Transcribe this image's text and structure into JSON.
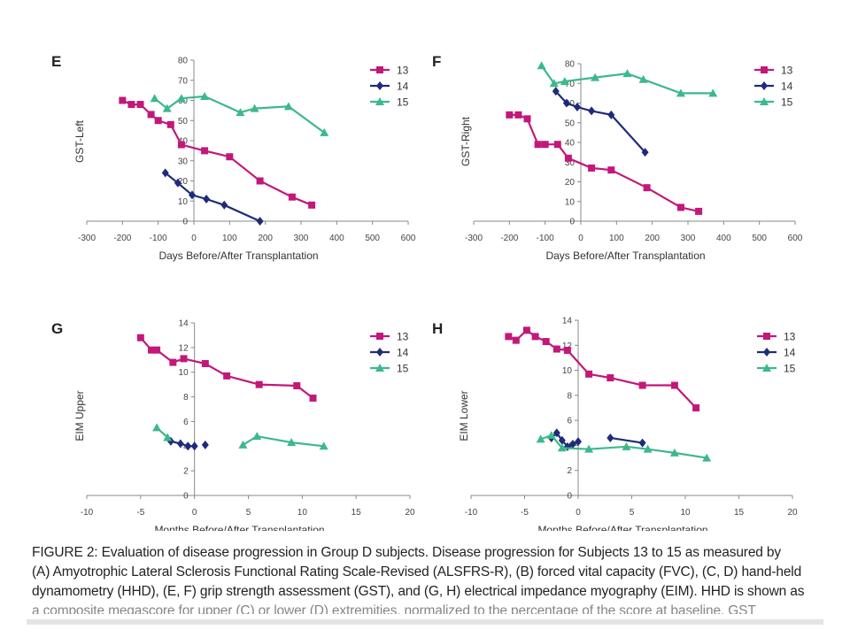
{
  "figure": {
    "caption_lines": [
      "FIGURE 2: Evaluation of disease progression in Group D subjects. Disease progression for Subjects 13 to 15 as measured by",
      "(A) Amyotrophic Lateral Sclerosis Functional Rating Scale-Revised (ALSFRS-R), (B) forced vital capacity (FVC), (C, D) hand-held",
      "dynamometry (HHD), (E, F) grip strength assessment (GST), and (G, H) electrical impedance myography (EIM). HHD is shown as"
    ],
    "caption_cutoff_text": "a composite megascore for upper (C) or lower (D) extremities, normalized to the percentage of the score at baseline. GST"
  },
  "chart_data": [
    {
      "panel": "E",
      "type": "line",
      "ylabel": "GST-Left",
      "xlabel": "Days Before/After Transplantation",
      "xlim": [
        -300,
        600
      ],
      "ylim": [
        0,
        80
      ],
      "xticks": [
        -300,
        -200,
        -100,
        0,
        100,
        200,
        300,
        400,
        500,
        600
      ],
      "yticks": [
        0,
        10,
        20,
        30,
        40,
        50,
        60,
        70,
        80
      ],
      "legend_position": "top-right",
      "series": [
        {
          "name": "13",
          "color": "#c2187a",
          "marker": "square",
          "x": [
            -200,
            -175,
            -150,
            -120,
            -100,
            -65,
            -35,
            30,
            100,
            185,
            275,
            330
          ],
          "y": [
            60,
            58,
            58,
            53,
            50,
            48,
            38,
            35,
            32,
            20,
            12,
            8
          ]
        },
        {
          "name": "14",
          "color": "#1f2b7a",
          "marker": "diamond",
          "x": [
            -80,
            -45,
            -5,
            35,
            85,
            185
          ],
          "y": [
            24,
            19,
            13,
            11,
            8,
            0
          ]
        },
        {
          "name": "15",
          "color": "#3cb98a",
          "marker": "triangle",
          "x": [
            -110,
            -75,
            -35,
            30,
            130,
            170,
            265,
            365
          ],
          "y": [
            61,
            56,
            61,
            62,
            54,
            56,
            57,
            44
          ]
        }
      ]
    },
    {
      "panel": "F",
      "type": "line",
      "ylabel": "GST-Right",
      "xlabel": "Days Before/After Transplantation",
      "xlim": [
        -300,
        600
      ],
      "ylim": [
        0,
        80
      ],
      "xticks": [
        -300,
        -200,
        -100,
        0,
        100,
        200,
        300,
        400,
        500,
        600
      ],
      "yticks": [
        0,
        10,
        20,
        30,
        40,
        50,
        60,
        70,
        80
      ],
      "legend_position": "top-right",
      "series": [
        {
          "name": "13",
          "color": "#c2187a",
          "marker": "square",
          "x": [
            -200,
            -175,
            -150,
            -120,
            -100,
            -65,
            -35,
            30,
            85,
            185,
            280,
            330
          ],
          "y": [
            54,
            54,
            52,
            39,
            39,
            39,
            32,
            27,
            26,
            17,
            7,
            5
          ]
        },
        {
          "name": "14",
          "color": "#1f2b7a",
          "marker": "diamond",
          "x": [
            -70,
            -40,
            -10,
            30,
            85,
            180
          ],
          "y": [
            66,
            60,
            58,
            56,
            54,
            35
          ]
        },
        {
          "name": "15",
          "color": "#3cb98a",
          "marker": "triangle",
          "x": [
            -110,
            -75,
            -45,
            40,
            130,
            175,
            280,
            370
          ],
          "y": [
            79,
            70,
            71,
            73,
            75,
            72,
            65,
            65
          ]
        }
      ]
    },
    {
      "panel": "G",
      "type": "line",
      "ylabel": "EIM Upper",
      "xlabel": "Months Before/After Transplantation",
      "xlim": [
        -10,
        20
      ],
      "ylim": [
        0,
        14
      ],
      "xticks": [
        -10,
        -5,
        0,
        5,
        10,
        15,
        20
      ],
      "yticks": [
        0,
        2,
        4,
        6,
        8,
        10,
        12,
        14
      ],
      "legend_position": "top-right",
      "series": [
        {
          "name": "13",
          "color": "#c2187a",
          "marker": "square",
          "x": [
            -5,
            -4,
            -3.5,
            -2,
            -1,
            1,
            3,
            6,
            9.5,
            11
          ],
          "y": [
            12.8,
            11.8,
            11.8,
            10.8,
            11.1,
            10.7,
            9.7,
            9.0,
            8.9,
            7.9
          ]
        },
        {
          "name": "14",
          "color": "#1f2b7a",
          "marker": "diamond",
          "x": [
            -2.2,
            -1.3,
            -0.6,
            0,
            1
          ],
          "y": [
            4.4,
            4.2,
            4.0,
            4.0,
            4.1
          ]
        },
        {
          "name": "15",
          "color": "#3cb98a",
          "marker": "triangle",
          "x": [
            -3.5,
            -2.5,
            4.5,
            5.8,
            9,
            12
          ],
          "y": [
            5.5,
            4.7,
            4.1,
            4.8,
            4.3,
            4.0
          ]
        }
      ]
    },
    {
      "panel": "H",
      "type": "line",
      "ylabel": "EIM Lower",
      "xlabel": "Months Before/After Transplantation",
      "xlim": [
        -10,
        20
      ],
      "ylim": [
        0,
        14
      ],
      "xticks": [
        -10,
        -5,
        0,
        5,
        10,
        15,
        20
      ],
      "yticks": [
        0,
        2,
        4,
        6,
        8,
        10,
        12,
        14
      ],
      "legend_position": "top-right",
      "series": [
        {
          "name": "13",
          "color": "#c2187a",
          "marker": "square",
          "x": [
            -6.5,
            -5.8,
            -4.8,
            -4,
            -3,
            -2,
            -1,
            1,
            3,
            6,
            9,
            11
          ],
          "y": [
            12.7,
            12.4,
            13.2,
            12.7,
            12.3,
            11.7,
            11.6,
            9.7,
            9.4,
            8.8,
            8.8,
            7.0
          ]
        },
        {
          "name": "14",
          "color": "#1f2b7a",
          "marker": "diamond",
          "x": [
            -2.5,
            -2,
            -1.5,
            -1,
            -0.5,
            0,
            3,
            6
          ],
          "y": [
            4.6,
            5.0,
            4.4,
            3.9,
            4.1,
            4.3,
            4.6,
            4.2
          ]
        },
        {
          "name": "15",
          "color": "#3cb98a",
          "marker": "triangle",
          "x": [
            -3.5,
            -2.5,
            -1.5,
            1,
            4.5,
            6.5,
            9,
            12
          ],
          "y": [
            4.5,
            4.8,
            3.8,
            3.7,
            3.9,
            3.7,
            3.4,
            3.0
          ]
        }
      ]
    }
  ]
}
